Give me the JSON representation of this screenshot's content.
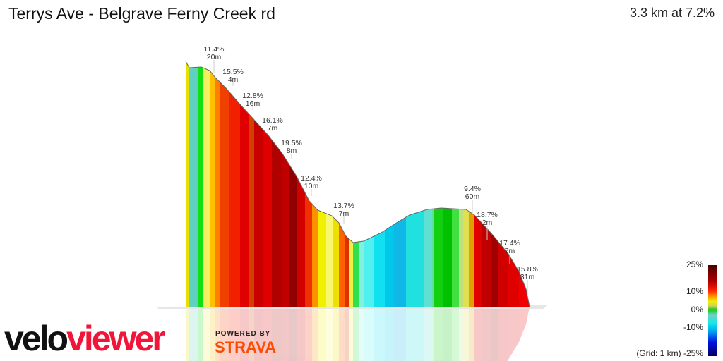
{
  "header": {
    "title": "Terrys Ave - Belgrave Ferny Creek rd",
    "summary": "3.3 km at 7.2%"
  },
  "chart_data": {
    "type": "area",
    "title": "Terrys Ave - Belgrave Ferny Creek rd",
    "annotations": [
      {
        "grade": "11.4%",
        "length": "20m"
      },
      {
        "grade": "15.5%",
        "length": "4m"
      },
      {
        "grade": "12.8%",
        "length": "16m"
      },
      {
        "grade": "16.1%",
        "length": "7m"
      },
      {
        "grade": "19.5%",
        "length": "8m"
      },
      {
        "grade": "12.4%",
        "length": "10m"
      },
      {
        "grade": "13.7%",
        "length": "7m"
      },
      {
        "grade": "9.4%",
        "length": "60m"
      },
      {
        "grade": "18.7%",
        "length": "2m"
      },
      {
        "grade": "17.4%",
        "length": "7m"
      },
      {
        "grade": "15.8%",
        "length": "31m"
      }
    ],
    "legend": {
      "ticks": [
        "25%",
        "10%",
        "0%",
        "-10%"
      ],
      "bottom": "(Grid: 1 km) -25%"
    }
  },
  "branding": {
    "logo_velo": "velo",
    "logo_viewer": "viewer",
    "powered_by": "POWERED BY",
    "strava": "STRAVA"
  }
}
